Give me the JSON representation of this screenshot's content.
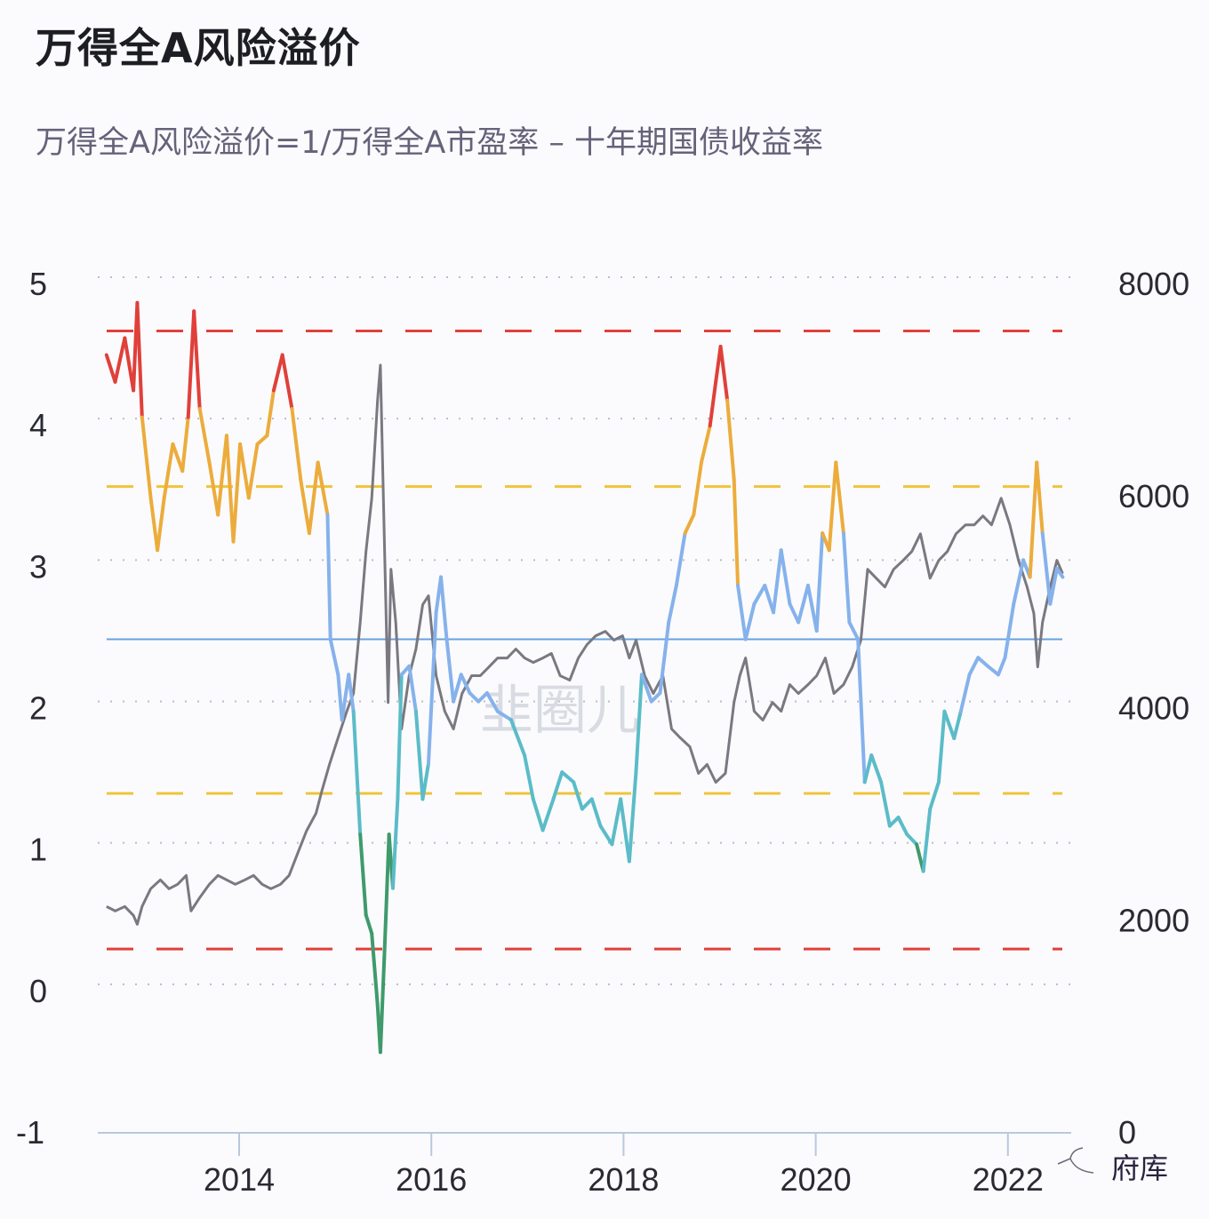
{
  "title": "万得全A风险溢价",
  "subtitle": "万得全A风险溢价=1/万得全A市盈率 – 十年期国债收益率",
  "watermark": "韭圈儿",
  "logo_text": "府库",
  "chart_data": {
    "type": "line",
    "title": "万得全A风险溢价",
    "subtitle": "万得全A风险溢价=1/万得全A市盈率 – 十年期国债收益率",
    "xlabel": "",
    "ylabel": "",
    "y2label": "",
    "xlim": [
      2012.6,
      2022.6
    ],
    "ylim": [
      -1,
      5
    ],
    "y2lim": [
      0,
      8000
    ],
    "x_ticks": [
      2014,
      2016,
      2018,
      2020,
      2022
    ],
    "x_tick_labels": [
      "2014",
      "2016",
      "2018",
      "2020",
      "2022"
    ],
    "y_ticks": [
      -1,
      0,
      1,
      2,
      3,
      4,
      5
    ],
    "y_tick_labels": [
      "-1",
      "0",
      "1",
      "2",
      "3",
      "4",
      "5"
    ],
    "y2_ticks": [
      0,
      2000,
      4000,
      6000,
      8000
    ],
    "y2_tick_labels": [
      "0",
      "2000",
      "4000",
      "6000",
      "8000"
    ],
    "grid": "horizontal dotted",
    "legend": "none",
    "reference_lines": [
      {
        "value": 4.67,
        "color": "#e0403a",
        "style": "dashed"
      },
      {
        "value": 3.57,
        "color": "#f0c43a",
        "style": "dashed"
      },
      {
        "value": 2.49,
        "color": "#6aa0e0",
        "style": "solid"
      },
      {
        "value": 1.4,
        "color": "#f0c43a",
        "style": "dashed"
      },
      {
        "value": 0.3,
        "color": "#e0403a",
        "style": "dashed"
      }
    ],
    "color_bands": [
      {
        "min": 4.1,
        "color": "#e0403a"
      },
      {
        "min": 3.1,
        "color": "#ecac3c"
      },
      {
        "min": 1.9,
        "color": "#86b2ec"
      },
      {
        "min": 1.0,
        "color": "#5bbcc8"
      },
      {
        "min": -9,
        "color": "#3f9a6c"
      }
    ],
    "series": [
      {
        "axis": "left",
        "color_by_value": true,
        "x": [
          2012.62,
          2012.71,
          2012.81,
          2012.9,
          2012.94,
          2012.99,
          2013.08,
          2013.15,
          2013.22,
          2013.31,
          2013.41,
          2013.47,
          2013.53,
          2013.59,
          2013.69,
          2013.78,
          2013.87,
          2013.94,
          2014.01,
          2014.1,
          2014.19,
          2014.29,
          2014.36,
          2014.45,
          2014.55,
          2014.64,
          2014.73,
          2014.82,
          2014.92,
          2014.95,
          2015.03,
          2015.07,
          2015.14,
          2015.19,
          2015.26,
          2015.32,
          2015.38,
          2015.44,
          2015.47,
          2015.51,
          2015.56,
          2015.6,
          2015.65,
          2015.69,
          2015.77,
          2015.84,
          2015.91,
          2015.97,
          2016.05,
          2016.1,
          2016.16,
          2016.23,
          2016.31,
          2016.4,
          2016.49,
          2016.58,
          2016.69,
          2016.83,
          2016.97,
          2017.06,
          2017.16,
          2017.27,
          2017.36,
          2017.48,
          2017.57,
          2017.67,
          2017.76,
          2017.88,
          2017.97,
          2018.06,
          2018.13,
          2018.19,
          2018.29,
          2018.38,
          2018.47,
          2018.55,
          2018.64,
          2018.73,
          2018.81,
          2018.9,
          2018.96,
          2019.01,
          2019.08,
          2019.15,
          2019.19,
          2019.27,
          2019.36,
          2019.47,
          2019.56,
          2019.64,
          2019.73,
          2019.82,
          2019.92,
          2020.01,
          2020.07,
          2020.14,
          2020.21,
          2020.29,
          2020.35,
          2020.44,
          2020.51,
          2020.58,
          2020.68,
          2020.77,
          2020.86,
          2020.95,
          2021.05,
          2021.12,
          2021.19,
          2021.28,
          2021.34,
          2021.44,
          2021.51,
          2021.6,
          2021.69,
          2021.79,
          2021.9,
          2021.97,
          2022.06,
          2022.16,
          2022.23,
          2022.3,
          2022.36,
          2022.44,
          2022.51,
          2022.57
        ],
        "values": [
          4.5,
          4.31,
          4.62,
          4.25,
          4.87,
          4.06,
          3.49,
          3.12,
          3.49,
          3.87,
          3.68,
          4.06,
          4.81,
          4.12,
          3.74,
          3.37,
          3.93,
          3.18,
          3.87,
          3.49,
          3.87,
          3.93,
          4.25,
          4.5,
          4.12,
          3.62,
          3.24,
          3.74,
          3.37,
          2.49,
          2.24,
          1.92,
          2.24,
          1.98,
          1.11,
          0.54,
          0.41,
          -0.09,
          -0.43,
          0.23,
          1.11,
          0.73,
          1.36,
          2.24,
          2.3,
          1.98,
          1.36,
          1.61,
          2.68,
          2.93,
          2.49,
          2.05,
          2.24,
          2.11,
          2.05,
          2.11,
          1.98,
          1.92,
          1.67,
          1.36,
          1.14,
          1.36,
          1.55,
          1.48,
          1.29,
          1.36,
          1.17,
          1.04,
          1.36,
          0.92,
          1.55,
          2.24,
          2.05,
          2.11,
          2.61,
          2.87,
          3.24,
          3.37,
          3.74,
          4.0,
          4.31,
          4.56,
          4.18,
          3.62,
          2.87,
          2.49,
          2.74,
          2.87,
          2.68,
          3.12,
          2.74,
          2.61,
          2.87,
          2.55,
          3.24,
          3.12,
          3.74,
          3.24,
          2.61,
          2.49,
          1.48,
          1.67,
          1.48,
          1.17,
          1.23,
          1.11,
          1.04,
          0.85,
          1.29,
          1.48,
          1.98,
          1.79,
          1.98,
          2.24,
          2.36,
          2.3,
          2.24,
          2.36,
          2.74,
          3.05,
          2.93,
          3.74,
          3.24,
          2.74,
          2.99,
          2.93
        ]
      },
      {
        "axis": "right",
        "color": "#7a7880",
        "x": [
          2012.62,
          2012.71,
          2012.81,
          2012.9,
          2012.94,
          2012.99,
          2013.08,
          2013.18,
          2013.27,
          2013.36,
          2013.45,
          2013.5,
          2013.59,
          2013.69,
          2013.78,
          2013.87,
          2013.96,
          2014.06,
          2014.15,
          2014.24,
          2014.33,
          2014.43,
          2014.52,
          2014.61,
          2014.7,
          2014.8,
          2014.86,
          2014.94,
          2015.03,
          2015.12,
          2015.19,
          2015.26,
          2015.32,
          2015.38,
          2015.44,
          2015.47,
          2015.51,
          2015.55,
          2015.58,
          2015.63,
          2015.69,
          2015.77,
          2015.84,
          2015.91,
          2015.97,
          2016.05,
          2016.14,
          2016.23,
          2016.32,
          2016.42,
          2016.51,
          2016.6,
          2016.69,
          2016.79,
          2016.88,
          2016.97,
          2017.06,
          2017.16,
          2017.25,
          2017.34,
          2017.44,
          2017.53,
          2017.62,
          2017.71,
          2017.81,
          2017.9,
          2017.99,
          2018.06,
          2018.13,
          2018.22,
          2018.31,
          2018.41,
          2018.5,
          2018.59,
          2018.69,
          2018.78,
          2018.87,
          2018.96,
          2019.06,
          2019.15,
          2019.21,
          2019.27,
          2019.36,
          2019.45,
          2019.55,
          2019.64,
          2019.73,
          2019.82,
          2019.92,
          2020.01,
          2020.1,
          2020.19,
          2020.29,
          2020.38,
          2020.47,
          2020.54,
          2020.63,
          2020.72,
          2020.81,
          2020.91,
          2021.0,
          2021.09,
          2021.19,
          2021.28,
          2021.37,
          2021.46,
          2021.56,
          2021.65,
          2021.74,
          2021.83,
          2021.93,
          2022.02,
          2022.11,
          2022.2,
          2022.27,
          2022.31,
          2022.36,
          2022.44,
          2022.51,
          2022.57
        ],
        "values": [
          2134,
          2092,
          2134,
          2050,
          1966,
          2134,
          2301,
          2385,
          2301,
          2343,
          2427,
          2092,
          2218,
          2343,
          2427,
          2385,
          2343,
          2385,
          2427,
          2343,
          2301,
          2343,
          2427,
          2636,
          2845,
          3012,
          3222,
          3473,
          3724,
          3975,
          4142,
          4812,
          5481,
          5983,
          6904,
          7238,
          5648,
          4058,
          5313,
          4812,
          3807,
          4310,
          4561,
          4979,
          5063,
          4310,
          3975,
          3807,
          4142,
          4310,
          4310,
          4393,
          4477,
          4477,
          4561,
          4477,
          4435,
          4477,
          4519,
          4310,
          4268,
          4477,
          4603,
          4686,
          4728,
          4645,
          4686,
          4477,
          4645,
          4310,
          4142,
          4310,
          3807,
          3724,
          3640,
          3389,
          3473,
          3305,
          3389,
          4058,
          4310,
          4477,
          3975,
          3891,
          4058,
          3975,
          4226,
          4142,
          4226,
          4310,
          4477,
          4142,
          4226,
          4393,
          4645,
          5313,
          5229,
          5146,
          5313,
          5397,
          5481,
          5648,
          5229,
          5397,
          5481,
          5648,
          5732,
          5732,
          5816,
          5732,
          5983,
          5732,
          5397,
          5146,
          4896,
          4393,
          4812,
          5146,
          5397,
          5272
        ]
      }
    ]
  }
}
